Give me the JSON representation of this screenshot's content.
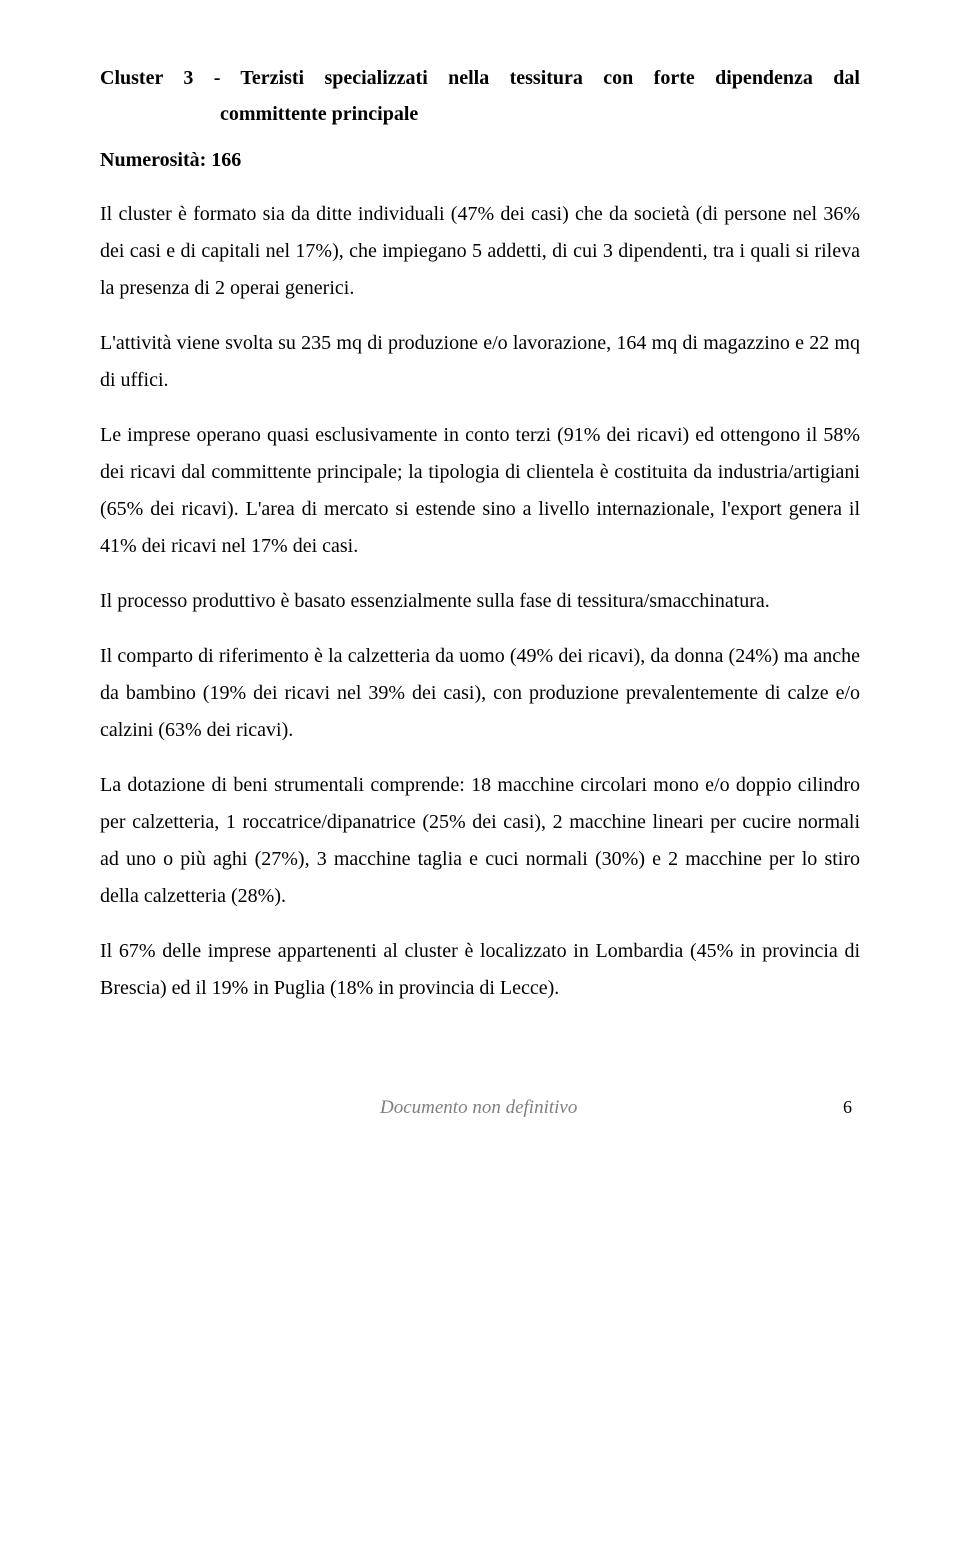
{
  "heading": {
    "line1": "Cluster 3 - Terzisti specializzati nella tessitura con forte dipendenza dal",
    "line2": "committente principale"
  },
  "subheading": "Numerosità: 166",
  "paragraphs": {
    "p1": "Il cluster è formato sia da ditte individuali (47% dei casi) che da società (di persone nel 36% dei casi e di capitali nel 17%), che impiegano 5 addetti, di cui 3 dipendenti, tra i quali si rileva la presenza di 2 operai generici.",
    "p2": "L'attività viene svolta su 235 mq di produzione e/o lavorazione, 164 mq di magazzino e 22 mq di uffici.",
    "p3": "Le imprese operano quasi esclusivamente in conto terzi (91% dei ricavi) ed ottengono il 58% dei ricavi dal committente principale; la tipologia di clientela è costituita da industria/artigiani (65% dei ricavi). L'area di mercato si estende sino a livello internazionale, l'export genera il 41% dei ricavi nel 17% dei casi.",
    "p4": "Il processo produttivo è basato essenzialmente sulla fase di tessitura/smacchinatura.",
    "p5": "Il comparto di riferimento è la calzetteria da uomo (49% dei ricavi), da donna (24%) ma anche da bambino (19% dei ricavi nel 39% dei casi), con produzione prevalentemente di calze e/o calzini (63% dei ricavi).",
    "p6": "La dotazione di beni strumentali comprende: 18 macchine circolari mono e/o doppio cilindro per calzetteria, 1 roccatrice/dipanatrice (25% dei casi), 2 macchine lineari per cucire normali ad uno o più aghi (27%), 3 macchine taglia e cuci normali (30%) e 2 macchine per lo stiro della calzetteria (28%).",
    "p7": "Il 67% delle imprese appartenenti al cluster è localizzato in Lombardia (45% in provincia di Brescia) ed il 19% in Puglia (18% in provincia di Lecce)."
  },
  "footer": {
    "text": "Documento non definitivo",
    "page": "6"
  }
}
